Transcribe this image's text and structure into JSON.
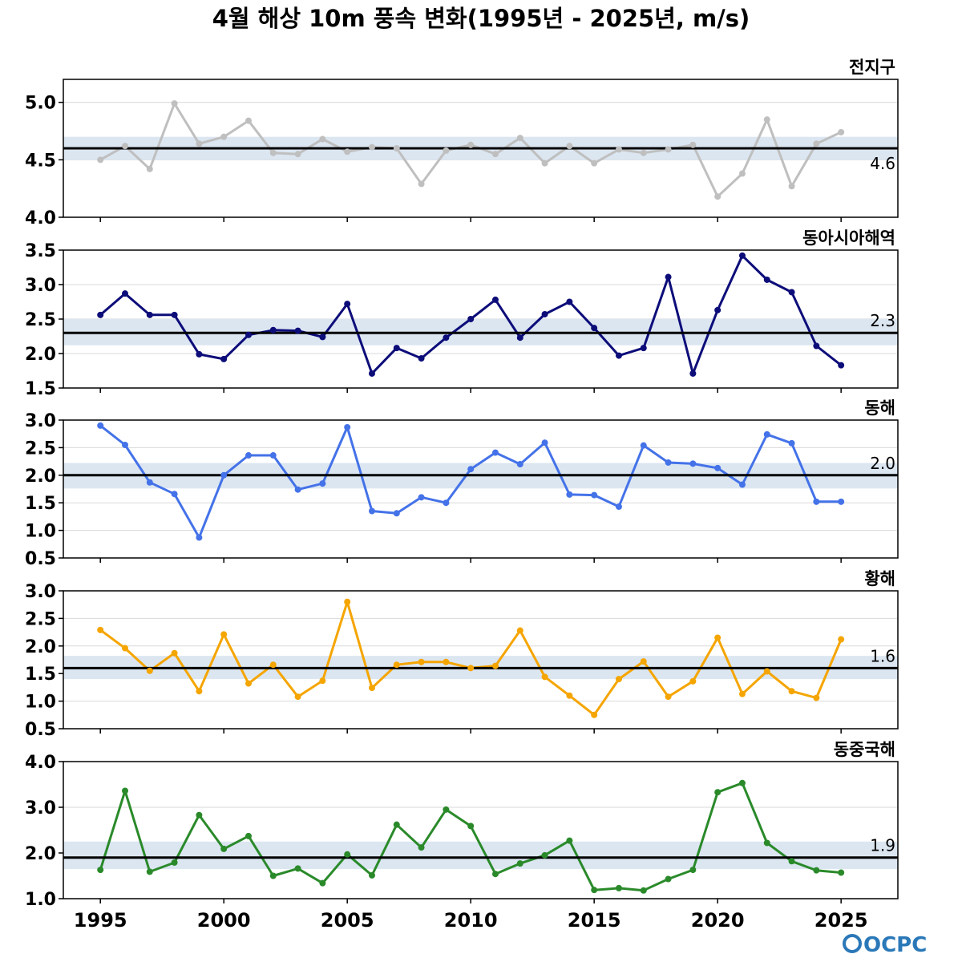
{
  "title": "4월 해상 10m 풍속 변화(1995년 - 2025년, m/s)",
  "logo": "OCPC",
  "colors": {
    "band": "#dbe6f1",
    "grid": "#d9d9d9",
    "mean_line": "#000000"
  },
  "chart_data": [
    {
      "type": "line",
      "label": "전지구",
      "color": "#bfbfbf",
      "mean": 4.6,
      "mean_label": "4.6",
      "band": [
        4.5,
        4.7
      ],
      "ylim": [
        4.0,
        5.2
      ],
      "yticks": [
        4.0,
        4.5,
        5.0
      ],
      "ytick_labels": [
        "4.0",
        "4.5",
        "5.0"
      ],
      "x": [
        1995,
        1996,
        1997,
        1998,
        1999,
        2000,
        2001,
        2002,
        2003,
        2004,
        2005,
        2006,
        2007,
        2008,
        2009,
        2010,
        2011,
        2012,
        2013,
        2014,
        2015,
        2016,
        2017,
        2018,
        2019,
        2020,
        2021,
        2022,
        2023,
        2024,
        2025
      ],
      "values": [
        4.5,
        4.62,
        4.42,
        4.99,
        4.64,
        4.7,
        4.84,
        4.56,
        4.55,
        4.68,
        4.57,
        4.61,
        4.6,
        4.29,
        4.58,
        4.63,
        4.55,
        4.69,
        4.47,
        4.62,
        4.47,
        4.59,
        4.56,
        4.59,
        4.63,
        4.18,
        4.38,
        4.85,
        4.27,
        4.64,
        4.74
      ]
    },
    {
      "type": "line",
      "label": "동아시아해역",
      "color": "#0d0d7a",
      "mean": 2.3,
      "mean_label": "2.3",
      "band": [
        2.12,
        2.5
      ],
      "ylim": [
        1.5,
        3.5
      ],
      "yticks": [
        1.5,
        2.0,
        2.5,
        3.0,
        3.5
      ],
      "ytick_labels": [
        "1.5",
        "2.0",
        "2.5",
        "3.0",
        "3.5"
      ],
      "x": [
        1995,
        1996,
        1997,
        1998,
        1999,
        2000,
        2001,
        2002,
        2003,
        2004,
        2005,
        2006,
        2007,
        2008,
        2009,
        2010,
        2011,
        2012,
        2013,
        2014,
        2015,
        2016,
        2017,
        2018,
        2019,
        2020,
        2021,
        2022,
        2023,
        2024,
        2025
      ],
      "values": [
        2.56,
        2.87,
        2.56,
        2.56,
        1.99,
        1.92,
        2.27,
        2.34,
        2.33,
        2.24,
        2.72,
        1.71,
        2.08,
        1.93,
        2.23,
        2.5,
        2.78,
        2.23,
        2.57,
        2.75,
        2.37,
        1.97,
        2.08,
        3.11,
        1.71,
        2.63,
        3.42,
        3.07,
        2.89,
        2.11,
        1.83
      ]
    },
    {
      "type": "line",
      "label": "동해",
      "color": "#4472e8",
      "mean": 2.0,
      "mean_label": "2.0",
      "band": [
        1.76,
        2.22
      ],
      "ylim": [
        0.5,
        3.0
      ],
      "yticks": [
        0.5,
        1.0,
        1.5,
        2.0,
        2.5,
        3.0
      ],
      "ytick_labels": [
        "0.5",
        "1.0",
        "1.5",
        "2.0",
        "2.5",
        "3.0"
      ],
      "x": [
        1995,
        1996,
        1997,
        1998,
        1999,
        2000,
        2001,
        2002,
        2003,
        2004,
        2005,
        2006,
        2007,
        2008,
        2009,
        2010,
        2011,
        2012,
        2013,
        2014,
        2015,
        2016,
        2017,
        2018,
        2019,
        2020,
        2021,
        2022,
        2023,
        2024,
        2025
      ],
      "values": [
        2.9,
        2.55,
        1.87,
        1.66,
        0.87,
        2.0,
        2.36,
        2.36,
        1.74,
        1.85,
        2.87,
        1.35,
        1.31,
        1.6,
        1.5,
        2.11,
        2.41,
        2.2,
        2.59,
        1.65,
        1.64,
        1.43,
        2.54,
        2.23,
        2.21,
        2.13,
        1.83,
        2.74,
        2.58,
        1.52,
        1.52
      ]
    },
    {
      "type": "line",
      "label": "황해",
      "color": "#f5a500",
      "mean": 1.6,
      "mean_label": "1.6",
      "band": [
        1.4,
        1.82
      ],
      "ylim": [
        0.5,
        3.0
      ],
      "yticks": [
        0.5,
        1.0,
        1.5,
        2.0,
        2.5,
        3.0
      ],
      "ytick_labels": [
        "0.5",
        "1.0",
        "1.5",
        "2.0",
        "2.5",
        "3.0"
      ],
      "x": [
        1995,
        1996,
        1997,
        1998,
        1999,
        2000,
        2001,
        2002,
        2003,
        2004,
        2005,
        2006,
        2007,
        2008,
        2009,
        2010,
        2011,
        2012,
        2013,
        2014,
        2015,
        2016,
        2017,
        2018,
        2019,
        2020,
        2021,
        2022,
        2023,
        2024,
        2025
      ],
      "values": [
        2.29,
        1.96,
        1.55,
        1.87,
        1.18,
        2.21,
        1.32,
        1.66,
        1.08,
        1.37,
        2.8,
        1.24,
        1.66,
        1.71,
        1.71,
        1.6,
        1.64,
        2.28,
        1.44,
        1.1,
        0.75,
        1.4,
        1.72,
        1.08,
        1.36,
        2.15,
        1.13,
        1.54,
        1.18,
        1.06,
        2.12
      ]
    },
    {
      "type": "line",
      "label": "동중국해",
      "color": "#2a8a2a",
      "mean": 1.9,
      "mean_label": "1.9",
      "band": [
        1.65,
        2.25
      ],
      "ylim": [
        1.0,
        4.0
      ],
      "yticks": [
        1.0,
        2.0,
        3.0,
        4.0
      ],
      "ytick_labels": [
        "1.0",
        "2.0",
        "3.0",
        "4.0"
      ],
      "x": [
        1995,
        1996,
        1997,
        1998,
        1999,
        2000,
        2001,
        2002,
        2003,
        2004,
        2005,
        2006,
        2007,
        2008,
        2009,
        2010,
        2011,
        2012,
        2013,
        2014,
        2015,
        2016,
        2017,
        2018,
        2019,
        2020,
        2021,
        2022,
        2023,
        2024,
        2025
      ],
      "values": [
        1.63,
        3.36,
        1.59,
        1.79,
        2.83,
        2.09,
        2.37,
        1.5,
        1.66,
        1.34,
        1.97,
        1.51,
        2.62,
        2.12,
        2.95,
        2.59,
        1.54,
        1.77,
        1.95,
        2.27,
        1.19,
        1.23,
        1.18,
        1.43,
        1.63,
        3.33,
        3.53,
        2.22,
        1.82,
        1.62,
        1.57
      ]
    }
  ],
  "xaxis": {
    "ticks": [
      1995,
      2000,
      2005,
      2010,
      2015,
      2020,
      2025
    ],
    "tick_labels": [
      "1995",
      "2000",
      "2005",
      "2010",
      "2015",
      "2020",
      "2025"
    ]
  }
}
